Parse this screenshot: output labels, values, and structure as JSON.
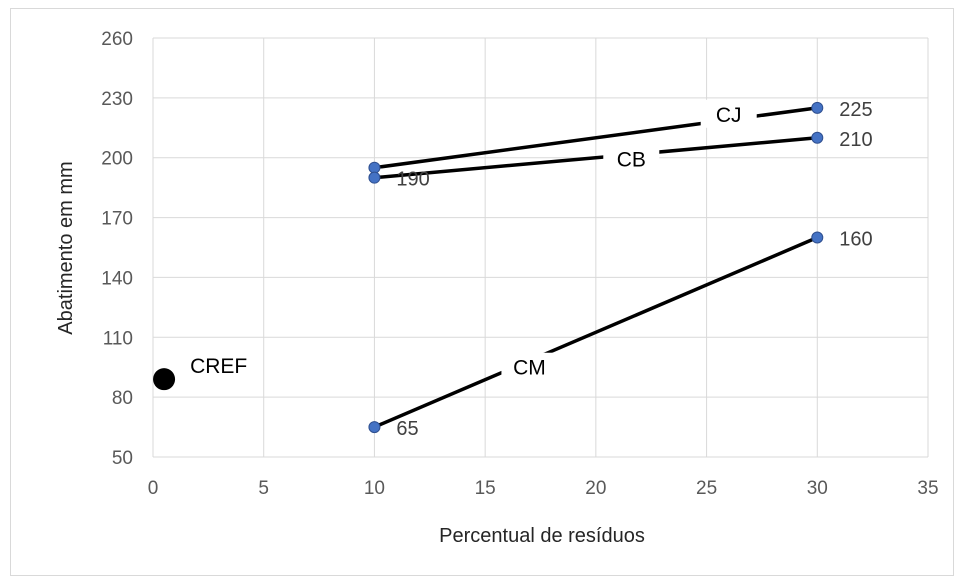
{
  "chart_data": {
    "type": "line",
    "xlabel": "Percentual de resíduos",
    "ylabel": "Abatimento em mm",
    "xlim": [
      0,
      35
    ],
    "ylim": [
      50,
      260
    ],
    "xticks": [
      0,
      5,
      10,
      15,
      20,
      25,
      30,
      35
    ],
    "yticks": [
      50,
      80,
      110,
      140,
      170,
      200,
      230,
      260
    ],
    "grid": true,
    "legend": "none",
    "series": [
      {
        "name": "CJ",
        "x": [
          10,
          30
        ],
        "y": [
          195,
          225
        ],
        "point_labels": [
          "",
          "225"
        ],
        "color": "#000000",
        "marker_color": "#4472c4"
      },
      {
        "name": "CB",
        "x": [
          10,
          30
        ],
        "y": [
          190,
          210
        ],
        "point_labels": [
          "190",
          "210"
        ],
        "color": "#000000",
        "marker_color": "#4472c4"
      },
      {
        "name": "CM",
        "x": [
          10,
          30
        ],
        "y": [
          65,
          160
        ],
        "point_labels": [
          "65",
          "160"
        ],
        "color": "#000000",
        "marker_color": "#4472c4"
      }
    ],
    "reference": {
      "name": "CREF",
      "x": 0.5,
      "y": 89,
      "color": "#000000"
    }
  }
}
